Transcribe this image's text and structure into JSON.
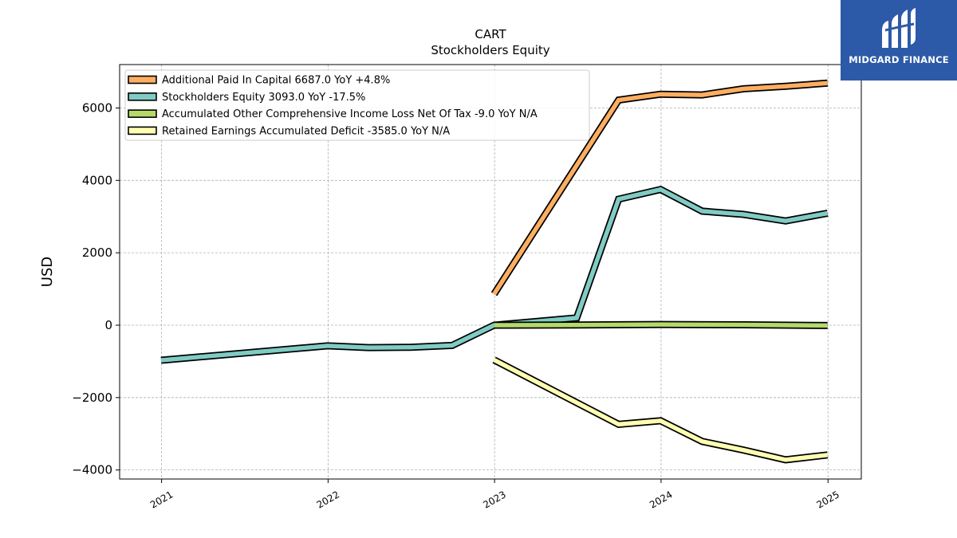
{
  "brand": {
    "name": "MIDGARD FINANCE",
    "logo_icon": "midgard-logo-icon",
    "bg_color": "#2d5aa8"
  },
  "chart_data": {
    "type": "line",
    "title": "CART",
    "subtitle": "Stockholders  Equity",
    "xlabel": "",
    "ylabel": "USD",
    "x_ticks": [
      "2021",
      "2022",
      "2023",
      "2024",
      "2025"
    ],
    "y_ticks": [
      -4000,
      -2000,
      0,
      2000,
      4000,
      6000
    ],
    "y_tick_labels": [
      "−4000",
      "−2000",
      "0",
      "2000",
      "4000",
      "6000"
    ],
    "xlim": [
      "2020-10-01",
      "2025-03-15"
    ],
    "ylim": [
      -4250,
      7200
    ],
    "grid": true,
    "legend_position": "top-left",
    "series": [
      {
        "name": "Additional Paid In Capital  6687.0 YoY +4.8%",
        "color": "#fdae61",
        "x": [
          "2022-12-31",
          "2023-09-30",
          "2023-12-31",
          "2024-03-31",
          "2024-06-30",
          "2024-09-30",
          "2024-12-31"
        ],
        "values": [
          860,
          6220,
          6380,
          6360,
          6530,
          6600,
          6687
        ]
      },
      {
        "name": "Stockholders Equity  3093.0 YoY -17.5%",
        "color": "#80cbc4",
        "x": [
          "2020-12-31",
          "2021-12-31",
          "2022-03-31",
          "2022-06-30",
          "2022-09-30",
          "2022-12-31",
          "2023-06-30",
          "2023-09-30",
          "2023-12-31",
          "2024-03-31",
          "2024-06-30",
          "2024-09-30",
          "2024-12-31"
        ],
        "values": [
          -970,
          -570,
          -620,
          -610,
          -560,
          0,
          200,
          3480,
          3750,
          3150,
          3060,
          2880,
          3093
        ]
      },
      {
        "name": "Accumulated Other Comprehensive Income Loss Net Of Tax  -9.0 YoY N/A",
        "color": "#b5d96a",
        "x": [
          "2022-12-31",
          "2023-06-30",
          "2023-12-31",
          "2024-06-30",
          "2024-12-31"
        ],
        "values": [
          0,
          5,
          20,
          10,
          -9
        ]
      },
      {
        "name": "Retained Earnings Accumulated Deficit  -3585.0 YoY N/A",
        "color": "#ffffb3",
        "x": [
          "2022-12-31",
          "2023-09-30",
          "2023-12-31",
          "2024-03-31",
          "2024-06-30",
          "2024-09-30",
          "2024-12-31"
        ],
        "values": [
          -960,
          -2740,
          -2640,
          -3210,
          -3450,
          -3720,
          -3585
        ]
      }
    ]
  }
}
